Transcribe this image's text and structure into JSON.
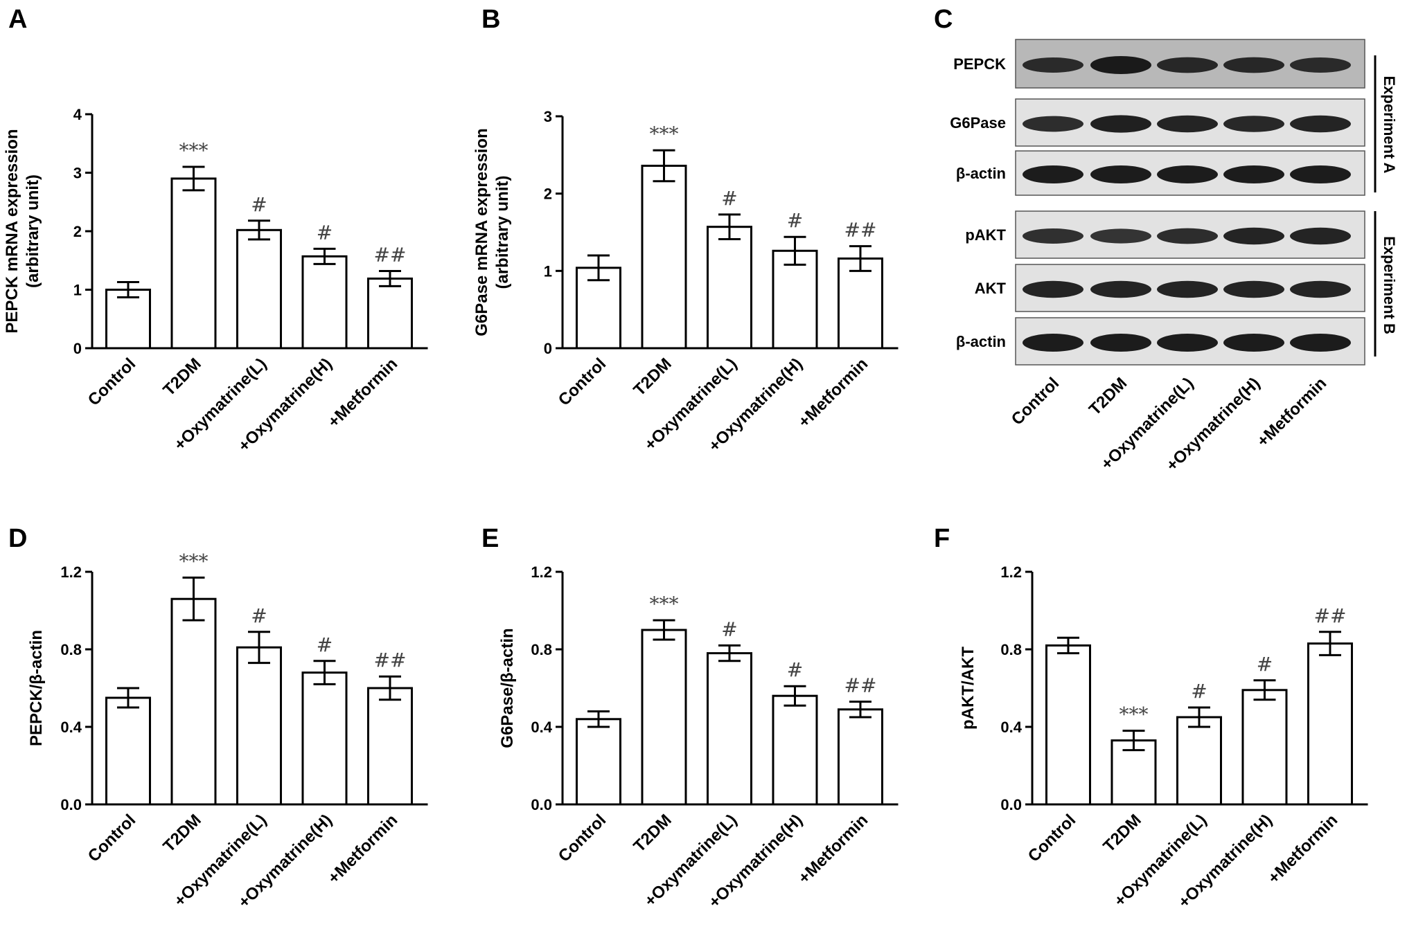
{
  "categories": [
    "Control",
    "T2DM",
    "+Oxymatrine(L)",
    "+Oxymatrine(H)",
    "+Metformin"
  ],
  "chart_data": [
    {
      "panel": "A",
      "type": "bar",
      "ylabel_lines": [
        "PEPCK mRNA expression",
        "(arbitrary unit)"
      ],
      "ylim": [
        0,
        4
      ],
      "yticks": [
        "0",
        "1",
        "2",
        "3",
        "4"
      ],
      "values": [
        1.0,
        2.9,
        2.02,
        1.57,
        1.19
      ],
      "errors": [
        0.13,
        0.2,
        0.16,
        0.13,
        0.13
      ],
      "significance": [
        "",
        "***",
        "#",
        "#",
        "##"
      ]
    },
    {
      "panel": "B",
      "type": "bar",
      "ylabel_lines": [
        "G6Pase mRNA expression",
        "(arbitrary unit)"
      ],
      "ylim": [
        0,
        3
      ],
      "yticks": [
        "0",
        "1",
        "2",
        "3"
      ],
      "values": [
        1.04,
        2.36,
        1.57,
        1.26,
        1.16
      ],
      "errors": [
        0.16,
        0.2,
        0.16,
        0.18,
        0.16
      ],
      "significance": [
        "",
        "***",
        "#",
        "#",
        "##"
      ]
    },
    {
      "panel": "D",
      "type": "bar",
      "ylabel_lines": [
        "PEPCK/β-actin"
      ],
      "ylim": [
        0,
        1.2
      ],
      "yticks": [
        "0.0",
        "0.4",
        "0.8",
        "1.2"
      ],
      "values": [
        0.55,
        1.06,
        0.81,
        0.68,
        0.6
      ],
      "errors": [
        0.05,
        0.11,
        0.08,
        0.06,
        0.06
      ],
      "significance": [
        "",
        "***",
        "#",
        "#",
        "##"
      ]
    },
    {
      "panel": "E",
      "type": "bar",
      "ylabel_lines": [
        "G6Pase/β-actin"
      ],
      "ylim": [
        0,
        1.2
      ],
      "yticks": [
        "0.0",
        "0.4",
        "0.8",
        "1.2"
      ],
      "values": [
        0.44,
        0.9,
        0.78,
        0.56,
        0.49
      ],
      "errors": [
        0.04,
        0.05,
        0.04,
        0.05,
        0.04
      ],
      "significance": [
        "",
        "***",
        "#",
        "#",
        "##"
      ]
    },
    {
      "panel": "F",
      "type": "bar",
      "ylabel_lines": [
        "pAKT/AKT"
      ],
      "ylim": [
        0,
        1.2
      ],
      "yticks": [
        "0.0",
        "0.4",
        "0.8",
        "1.2"
      ],
      "values": [
        0.82,
        0.33,
        0.45,
        0.59,
        0.83
      ],
      "errors": [
        0.04,
        0.05,
        0.05,
        0.05,
        0.06
      ],
      "significance": [
        "",
        "***",
        "#",
        "#",
        "##"
      ]
    }
  ],
  "blot": {
    "panel": "C",
    "rows": [
      {
        "label": "PEPCK",
        "intensity": [
          0.75,
          1.0,
          0.8,
          0.8,
          0.75
        ]
      },
      {
        "label": "G6Pase",
        "intensity": [
          0.8,
          0.95,
          0.9,
          0.85,
          0.9
        ]
      },
      {
        "label": "β-actin",
        "intensity": [
          1.0,
          1.0,
          1.0,
          1.0,
          1.0
        ]
      },
      {
        "label": "pAKT",
        "intensity": [
          0.75,
          0.7,
          0.8,
          0.9,
          0.9
        ]
      },
      {
        "label": "AKT",
        "intensity": [
          0.9,
          0.9,
          0.9,
          0.9,
          0.9
        ]
      },
      {
        "label": "β-actin",
        "intensity": [
          1.0,
          1.0,
          1.0,
          1.0,
          1.0
        ]
      }
    ],
    "groups": [
      "Experiment A",
      "Experiment B"
    ]
  },
  "colors": {
    "bar_fill": "#ffffff",
    "stroke": "#000000",
    "significance_text": "#444444",
    "blot_background": "#c8c8c8",
    "band": "#111111"
  }
}
